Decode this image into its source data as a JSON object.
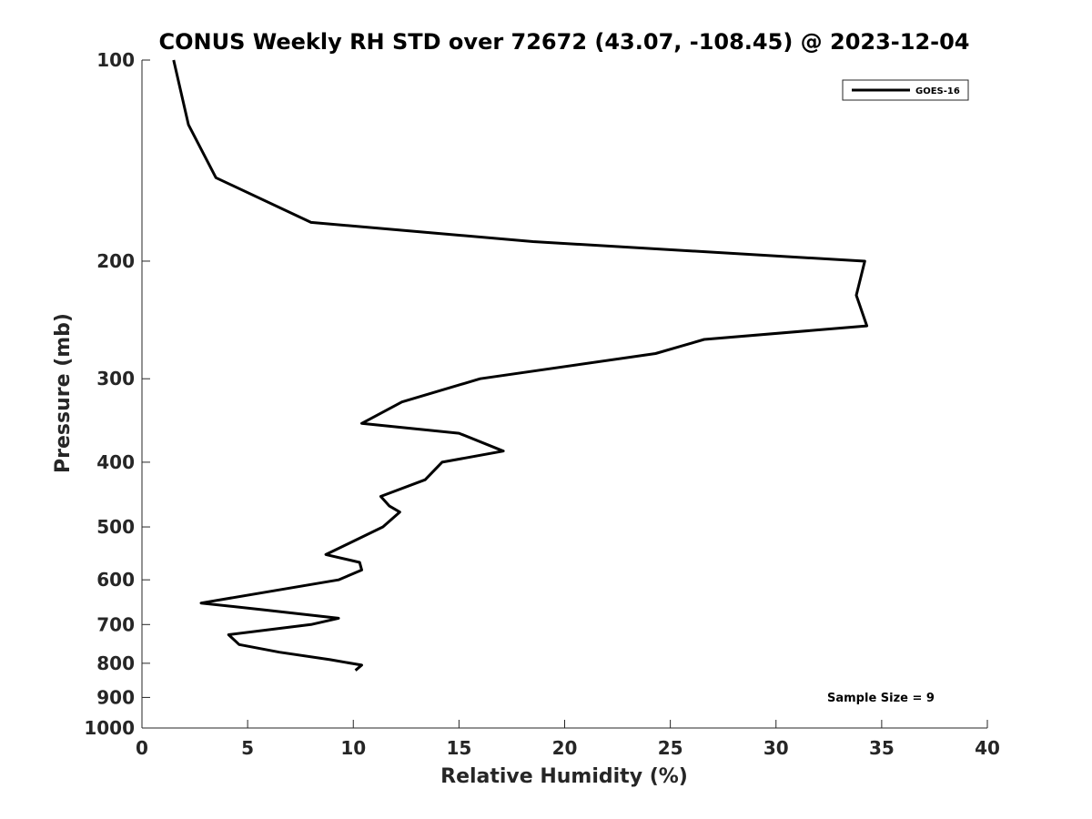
{
  "chart_data": {
    "type": "line",
    "title": "CONUS Weekly RH STD over 72672 (43.07, -108.45) @ 2023-12-04",
    "xlabel": "Relative Humidity (%)",
    "ylabel": "Pressure (mb)",
    "xlim": [
      0,
      40
    ],
    "ylim": [
      100,
      1000
    ],
    "y_scale": "log",
    "y_reversed": true,
    "x_ticks": [
      0,
      5,
      10,
      15,
      20,
      25,
      30,
      35,
      40
    ],
    "x_tick_labels": [
      "0",
      "5",
      "10",
      "15",
      "20",
      "25",
      "30",
      "35",
      "40"
    ],
    "y_ticks": [
      100,
      200,
      300,
      400,
      500,
      600,
      700,
      800,
      900,
      1000
    ],
    "y_tick_labels": [
      "100",
      "200",
      "300",
      "400",
      "500",
      "600",
      "700",
      "800",
      "900",
      "1000"
    ],
    "grid": false,
    "legend_position": "top-right",
    "annotation": "Sample Size = 9",
    "series": [
      {
        "name": "GOES-16",
        "color": "#000000",
        "points": [
          {
            "x": 1.5,
            "y": 100
          },
          {
            "x": 2.2,
            "y": 125
          },
          {
            "x": 3.5,
            "y": 150
          },
          {
            "x": 8.0,
            "y": 175
          },
          {
            "x": 18.5,
            "y": 187
          },
          {
            "x": 34.2,
            "y": 200
          },
          {
            "x": 33.8,
            "y": 225
          },
          {
            "x": 34.3,
            "y": 250
          },
          {
            "x": 26.6,
            "y": 262
          },
          {
            "x": 24.3,
            "y": 275
          },
          {
            "x": 16.0,
            "y": 300
          },
          {
            "x": 12.3,
            "y": 325
          },
          {
            "x": 10.4,
            "y": 350
          },
          {
            "x": 15.0,
            "y": 362
          },
          {
            "x": 17.1,
            "y": 385
          },
          {
            "x": 14.2,
            "y": 400
          },
          {
            "x": 13.4,
            "y": 425
          },
          {
            "x": 11.3,
            "y": 450
          },
          {
            "x": 11.7,
            "y": 465
          },
          {
            "x": 12.2,
            "y": 475
          },
          {
            "x": 11.4,
            "y": 500
          },
          {
            "x": 8.7,
            "y": 550
          },
          {
            "x": 10.3,
            "y": 565
          },
          {
            "x": 10.4,
            "y": 580
          },
          {
            "x": 9.3,
            "y": 600
          },
          {
            "x": 2.8,
            "y": 650
          },
          {
            "x": 5.7,
            "y": 665
          },
          {
            "x": 9.3,
            "y": 685
          },
          {
            "x": 8.0,
            "y": 700
          },
          {
            "x": 4.1,
            "y": 725
          },
          {
            "x": 4.6,
            "y": 750
          },
          {
            "x": 6.5,
            "y": 770
          },
          {
            "x": 8.9,
            "y": 790
          },
          {
            "x": 10.4,
            "y": 805
          },
          {
            "x": 10.1,
            "y": 820
          }
        ]
      }
    ]
  }
}
